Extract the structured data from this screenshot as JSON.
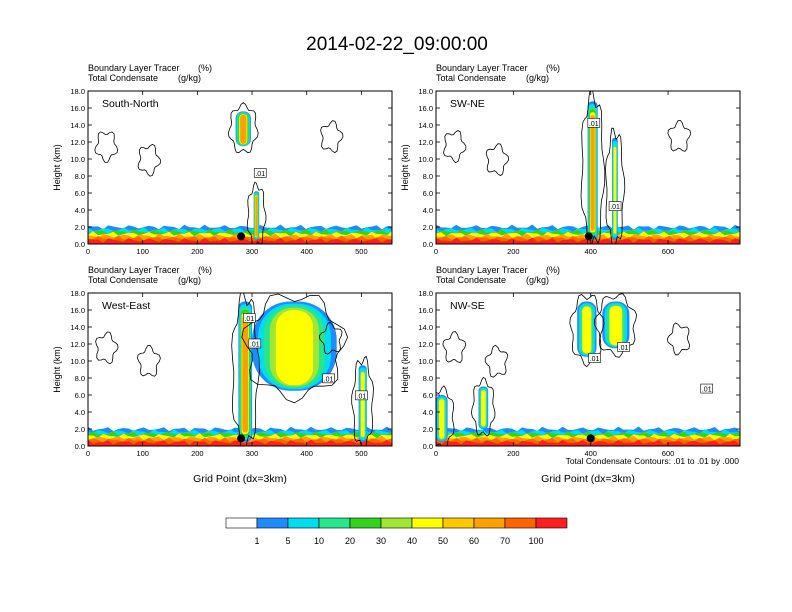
{
  "figure": {
    "title": "2014-02-22_09:00:00",
    "contour_note": "Total Condensate Contours: .01 to .01 by .000",
    "contour_label": ".01"
  },
  "colorbar": {
    "labels": [
      "1",
      "5",
      "10",
      "20",
      "30",
      "40",
      "50",
      "60",
      "70",
      "100"
    ],
    "colors": [
      "#ffffff",
      "#1e8cff",
      "#00dcf0",
      "#28e68c",
      "#32d21e",
      "#a0e632",
      "#ffff00",
      "#ffc800",
      "#ffa000",
      "#ff6400",
      "#ff1e1e"
    ]
  },
  "chart_data": [
    {
      "type": "heatmap",
      "panel": "South-North",
      "subtitle_1": "Boundary Layer Tracer",
      "subtitle_1_unit": "(%)",
      "subtitle_2": "Total Condensate",
      "subtitle_2_unit": "(g/kg)",
      "ylabel": "Height (km)",
      "xlabel": "",
      "xlim": [
        0,
        556
      ],
      "ylim": [
        0,
        18
      ],
      "xticks": [
        0,
        100,
        200,
        300,
        400,
        500
      ],
      "yticks": [
        "0.0",
        "2.0",
        "4.0",
        "6.0",
        "8.0",
        "10.0",
        "12.0",
        "14.0",
        "16.0",
        "18.0"
      ],
      "site_x": 280,
      "plumes": [
        {
          "x": [
            270,
            298
          ],
          "y": [
            11.5,
            15.6
          ],
          "level": "high"
        },
        {
          "x": [
            303,
            313
          ],
          "y": [
            0.5,
            6.2
          ],
          "level": "high"
        }
      ],
      "contour_labels": [
        {
          "x": 315,
          "y": 8.3
        }
      ]
    },
    {
      "type": "heatmap",
      "panel": "SW-NE",
      "subtitle_1": "Boundary Layer Tracer",
      "subtitle_1_unit": "(%)",
      "subtitle_2": "Total Condensate",
      "subtitle_2_unit": "(g/kg)",
      "ylabel": "Height (km)",
      "xlabel": "",
      "xlim": [
        0,
        786
      ],
      "ylim": [
        0,
        18
      ],
      "xticks": [
        0,
        200,
        400,
        600
      ],
      "yticks": [
        "0.0",
        "2.0",
        "4.0",
        "6.0",
        "8.0",
        "10.0",
        "12.0",
        "14.0",
        "16.0",
        "18.0"
      ],
      "site_x": 395,
      "plumes": [
        {
          "x": [
            392,
            418
          ],
          "y": [
            0.5,
            16.8
          ],
          "level": "high"
        },
        {
          "x": [
            455,
            470
          ],
          "y": [
            0.5,
            12.5
          ],
          "level": "mid"
        }
      ],
      "contour_labels": [
        {
          "x": 408,
          "y": 14.2
        },
        {
          "x": 463,
          "y": 4.4
        }
      ]
    },
    {
      "type": "heatmap",
      "panel": "West-East",
      "subtitle_1": "Boundary Layer Tracer",
      "subtitle_1_unit": "(%)",
      "subtitle_2": "Total Condensate",
      "subtitle_2_unit": "(g/kg)",
      "ylabel": "Height (km)",
      "xlabel": "Grid Point (dx=3km)",
      "xlim": [
        0,
        556
      ],
      "ylim": [
        0,
        18
      ],
      "xticks": [
        0,
        100,
        200,
        300,
        400,
        500
      ],
      "yticks": [
        "0.0",
        "2.0",
        "4.0",
        "6.0",
        "8.0",
        "10.0",
        "12.0",
        "14.0",
        "16.0",
        "18.0"
      ],
      "site_x": 280,
      "plumes": [
        {
          "x": [
            275,
            300
          ],
          "y": [
            0.5,
            17.0
          ],
          "level": "high"
        },
        {
          "x": [
            300,
            455
          ],
          "y": [
            6.5,
            17.0
          ],
          "level": "mixed"
        },
        {
          "x": [
            495,
            510
          ],
          "y": [
            0.5,
            9.5
          ],
          "level": "mid"
        }
      ],
      "contour_labels": [
        {
          "x": 295,
          "y": 15.0
        },
        {
          "x": 305,
          "y": 12.0
        },
        {
          "x": 440,
          "y": 7.9
        },
        {
          "x": 500,
          "y": 5.9
        }
      ]
    },
    {
      "type": "heatmap",
      "panel": "NW-SE",
      "subtitle_1": "Boundary Layer Tracer",
      "subtitle_1_unit": "(%)",
      "subtitle_2": "Total Condensate",
      "subtitle_2_unit": "(g/kg)",
      "ylabel": "Height (km)",
      "xlabel": "Grid Point (dx=3km)",
      "xlim": [
        0,
        786
      ],
      "ylim": [
        0,
        18
      ],
      "xticks": [
        0,
        200,
        400,
        600
      ],
      "yticks": [
        "0.0",
        "2.0",
        "4.0",
        "6.0",
        "8.0",
        "10.0",
        "12.0",
        "14.0",
        "16.0",
        "18.0"
      ],
      "site_x": 400,
      "plumes": [
        {
          "x": [
            365,
            415
          ],
          "y": [
            10.5,
            17.0
          ],
          "level": "mid"
        },
        {
          "x": [
            430,
            500
          ],
          "y": [
            11.5,
            17.0
          ],
          "level": "mid"
        },
        {
          "x": [
            0,
            30
          ],
          "y": [
            0.5,
            6.0
          ],
          "level": "mid"
        },
        {
          "x": [
            110,
            135
          ],
          "y": [
            2.0,
            7.0
          ],
          "level": "mid"
        }
      ],
      "contour_labels": [
        {
          "x": 410,
          "y": 10.3
        },
        {
          "x": 485,
          "y": 11.6
        },
        {
          "x": 700,
          "y": 6.7
        }
      ]
    }
  ]
}
